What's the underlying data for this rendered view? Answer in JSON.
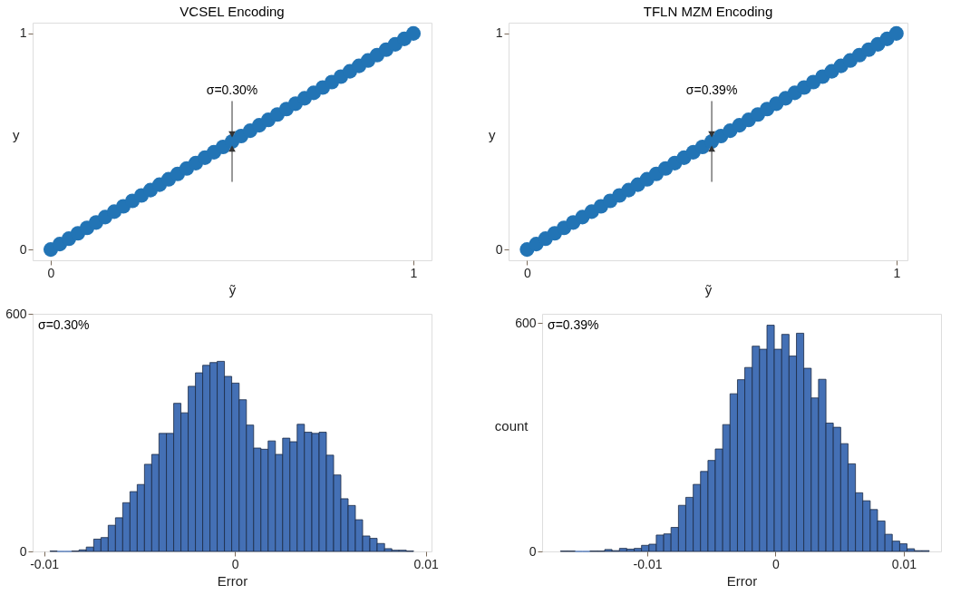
{
  "chart_data": [
    {
      "type": "scatter",
      "title": "VCSEL Encoding",
      "xlabel": "ỹ",
      "ylabel": "y",
      "marker": "circle",
      "x": [
        0,
        0.025,
        0.05,
        0.075,
        0.1,
        0.125,
        0.15,
        0.175,
        0.2,
        0.225,
        0.25,
        0.275,
        0.3,
        0.325,
        0.35,
        0.375,
        0.4,
        0.425,
        0.45,
        0.475,
        0.5,
        0.525,
        0.55,
        0.575,
        0.6,
        0.625,
        0.65,
        0.675,
        0.7,
        0.725,
        0.75,
        0.775,
        0.8,
        0.825,
        0.85,
        0.875,
        0.9,
        0.925,
        0.95,
        0.975,
        1
      ],
      "series": [
        {
          "color": "#2274b5",
          "values": [
            0,
            0.025,
            0.05,
            0.075,
            0.1,
            0.125,
            0.15,
            0.175,
            0.2,
            0.225,
            0.25,
            0.275,
            0.3,
            0.325,
            0.35,
            0.375,
            0.4,
            0.425,
            0.45,
            0.475,
            0.5,
            0.525,
            0.55,
            0.575,
            0.6,
            0.625,
            0.65,
            0.675,
            0.7,
            0.725,
            0.75,
            0.775,
            0.8,
            0.825,
            0.85,
            0.875,
            0.9,
            0.925,
            0.95,
            0.975,
            1
          ]
        }
      ],
      "xlim": [
        -0.05,
        1.05
      ],
      "ylim": [
        -0.05,
        1.05
      ],
      "xticks": [
        0,
        1
      ],
      "yticks": [
        0,
        1
      ],
      "grid": false,
      "annotations": [
        {
          "text": "σ=0.30%",
          "x": 0.5,
          "y": 0.5
        }
      ]
    },
    {
      "type": "scatter",
      "title": "TFLN MZM Encoding",
      "xlabel": "ỹ",
      "ylabel": "y",
      "marker": "circle",
      "x": [
        0,
        0.025,
        0.05,
        0.075,
        0.1,
        0.125,
        0.15,
        0.175,
        0.2,
        0.225,
        0.25,
        0.275,
        0.3,
        0.325,
        0.35,
        0.375,
        0.4,
        0.425,
        0.45,
        0.475,
        0.5,
        0.525,
        0.55,
        0.575,
        0.6,
        0.625,
        0.65,
        0.675,
        0.7,
        0.725,
        0.75,
        0.775,
        0.8,
        0.825,
        0.85,
        0.875,
        0.9,
        0.925,
        0.95,
        0.975,
        1
      ],
      "series": [
        {
          "color": "#2274b5",
          "values": [
            0,
            0.025,
            0.05,
            0.075,
            0.1,
            0.125,
            0.15,
            0.175,
            0.2,
            0.225,
            0.25,
            0.275,
            0.3,
            0.325,
            0.35,
            0.375,
            0.4,
            0.425,
            0.45,
            0.475,
            0.5,
            0.525,
            0.55,
            0.575,
            0.6,
            0.625,
            0.65,
            0.675,
            0.7,
            0.725,
            0.75,
            0.775,
            0.8,
            0.825,
            0.85,
            0.875,
            0.9,
            0.925,
            0.95,
            0.975,
            1
          ]
        }
      ],
      "xlim": [
        -0.05,
        1.03
      ],
      "ylim": [
        -0.05,
        1.05
      ],
      "xticks": [
        0,
        1
      ],
      "yticks": [
        0,
        1
      ],
      "grid": false,
      "annotations": [
        {
          "text": "σ=0.39%",
          "x": 0.5,
          "y": 0.5
        }
      ]
    },
    {
      "type": "histogram",
      "xlabel": "Error",
      "color": "#4470b5",
      "bins": [
        -0.00969,
        -0.00931,
        -0.00893,
        -0.00855,
        -0.00817,
        -0.00779,
        -0.0074,
        -0.00702,
        -0.00664,
        -0.00626,
        -0.00588,
        -0.0055,
        -0.00512,
        -0.00474,
        -0.00436,
        -0.00398,
        -0.00359,
        -0.00321,
        -0.00283,
        -0.00245,
        -0.00207,
        -0.00169,
        -0.00131,
        -0.00093,
        -0.00055,
        -0.00017,
        0.00022,
        0.0006,
        0.00098,
        0.00136,
        0.00174,
        0.00212,
        0.0025,
        0.00288,
        0.00326,
        0.00364,
        0.00403,
        0.00441,
        0.00479,
        0.00517,
        0.00555,
        0.00593,
        0.00631,
        0.00669,
        0.00707,
        0.00745,
        0.00784,
        0.00822,
        0.0086,
        0.00898,
        0.00936
      ],
      "values": [
        1,
        0,
        0,
        1,
        4,
        11,
        31,
        35,
        66,
        85,
        123,
        151,
        169,
        220,
        245,
        298,
        298,
        374,
        350,
        417,
        451,
        470,
        477,
        480,
        442,
        425,
        383,
        319,
        261,
        258,
        279,
        245,
        286,
        277,
        321,
        301,
        298,
        301,
        243,
        193,
        133,
        116,
        80,
        39,
        33,
        20,
        7,
        3,
        3,
        1
      ],
      "xlim": [
        -0.0106,
        0.0103
      ],
      "ylim": [
        0,
        600
      ],
      "xticks": [
        -0.01,
        0,
        0.01
      ],
      "yticks": [
        0,
        600
      ],
      "grid": false,
      "annotations": [
        "σ=0.30%"
      ]
    },
    {
      "type": "histogram",
      "xlabel": "Error",
      "ylabel": "count",
      "color": "#4470b5",
      "bins": [
        -0.01677,
        -0.0162,
        -0.01562,
        -0.01505,
        -0.01447,
        -0.0139,
        -0.01332,
        -0.01275,
        -0.01217,
        -0.0116,
        -0.01102,
        -0.01045,
        -0.00987,
        -0.0093,
        -0.00872,
        -0.00815,
        -0.00757,
        -0.007,
        -0.00642,
        -0.00585,
        -0.00527,
        -0.0047,
        -0.00412,
        -0.00355,
        -0.00297,
        -0.0024,
        -0.00182,
        -0.00125,
        -0.00067,
        -0.0001,
        0.00048,
        0.00105,
        0.00163,
        0.0022,
        0.00278,
        0.00335,
        0.00393,
        0.0045,
        0.00508,
        0.00565,
        0.00623,
        0.0068,
        0.00738,
        0.00795,
        0.00853,
        0.0091,
        0.00968,
        0.01025,
        0.01083,
        0.0114,
        0.01198
      ],
      "values": [
        1,
        1,
        0,
        0,
        1,
        1,
        5,
        2,
        8,
        6,
        8,
        16,
        19,
        43,
        46,
        63,
        121,
        142,
        176,
        210,
        239,
        269,
        333,
        414,
        451,
        483,
        539,
        531,
        594,
        531,
        570,
        513,
        573,
        481,
        403,
        452,
        337,
        326,
        283,
        230,
        154,
        133,
        110,
        80,
        45,
        27,
        20,
        7,
        2,
        2
      ],
      "xlim": [
        -0.0182,
        0.0129
      ],
      "ylim": [
        0,
        624
      ],
      "xticks": [
        -0.01,
        0,
        0.01
      ],
      "yticks": [
        0,
        600
      ],
      "grid": false,
      "annotations": [
        "σ=0.39%"
      ]
    }
  ]
}
